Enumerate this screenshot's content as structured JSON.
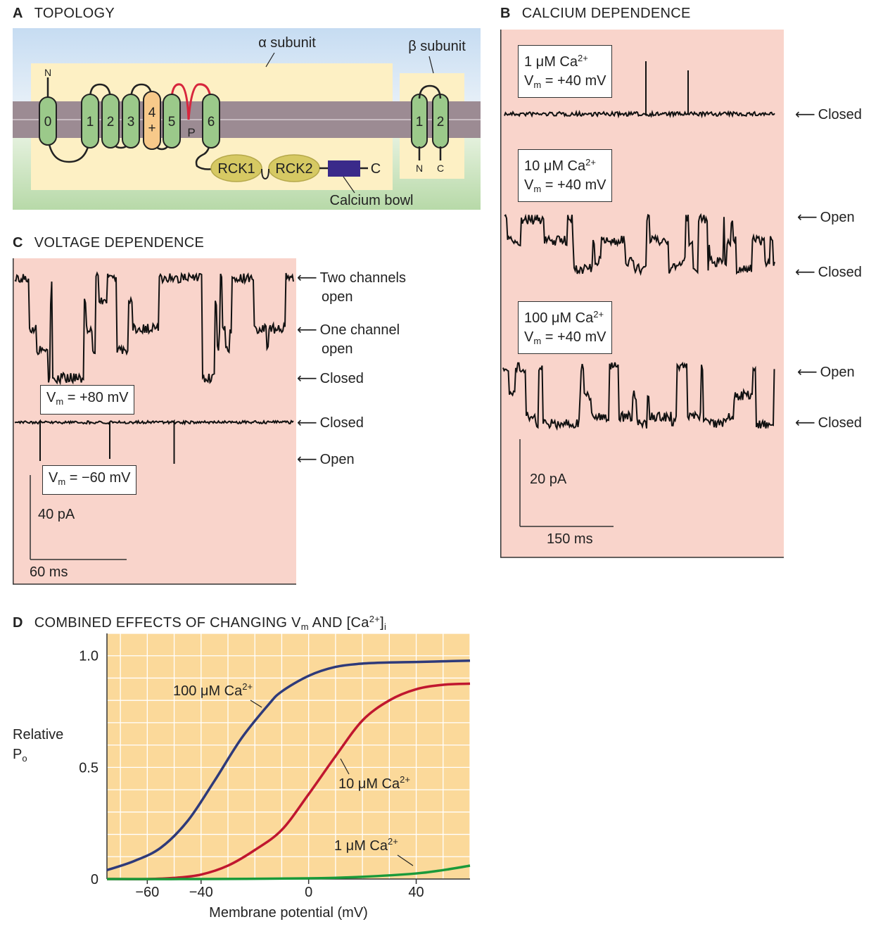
{
  "panel_a": {
    "letter": "A",
    "title": "TOPOLOGY",
    "alpha_label": "α subunit",
    "beta_label": "β subunit",
    "segments": [
      "0",
      "1",
      "2",
      "3",
      "4",
      "5",
      "6"
    ],
    "s4_plus": "+",
    "pore": "P",
    "n_term": "N",
    "c_term": "C",
    "rck1": "RCK1",
    "rck2": "RCK2",
    "calcium_bowl": "Calcium bowl",
    "beta_segments": [
      "1",
      "2"
    ],
    "beta_n": "N",
    "beta_c": "C"
  },
  "panel_b": {
    "letter": "B",
    "title": "CALCIUM DEPENDENCE",
    "conditions": [
      {
        "conc": "1 μM Ca",
        "vm": "V",
        "vm_value": " = +40 mV"
      },
      {
        "conc": "10 μM Ca",
        "vm": "V",
        "vm_value": " = +40 mV"
      },
      {
        "conc": "100 μM Ca",
        "vm": "V",
        "vm_value": " = +40 mV"
      }
    ],
    "sup": "2+",
    "sub_m": "m",
    "labels": {
      "closed": "Closed",
      "open": "Open"
    },
    "scale_y": "20 pA",
    "scale_x": "150 ms"
  },
  "panel_c": {
    "letter": "C",
    "title": "VOLTAGE DEPENDENCE",
    "two_open_1": "Two channels",
    "two_open_2": "open",
    "one_open_1": "One channel",
    "one_open_2": "open",
    "closed": "Closed",
    "open": "Open",
    "vm_pos": " = +80 mV",
    "vm_neg": " = −60 mV",
    "vm": "V",
    "sub_m": "m",
    "scale_y": "40 pA",
    "scale_x": "60 ms"
  },
  "panel_d": {
    "letter": "D",
    "title_pre": "COMBINED EFFECTS OF CHANGING V",
    "title_m": "m",
    "title_mid": " AND [Ca",
    "title_sup": "2+",
    "title_end": "]",
    "title_sub_i": "i",
    "ylabel_1": "Relative",
    "ylabel_2": "P",
    "ylabel_sub": "o",
    "xlabel": "Membrane potential (mV)"
  },
  "chart_data": {
    "type": "line",
    "title": "COMBINED EFFECTS OF CHANGING Vm AND [Ca2+]i",
    "xlabel": "Membrane potential (mV)",
    "ylabel": "Relative Po",
    "xlim": [
      -75,
      60
    ],
    "ylim": [
      0,
      1.1
    ],
    "x_ticks": [
      -60,
      -40,
      0,
      40
    ],
    "x_tick_labels": [
      "−60",
      "−40",
      "0",
      "40"
    ],
    "y_ticks": [
      0,
      0.5,
      1.0
    ],
    "y_tick_labels": [
      "0",
      "0.5",
      "1.0"
    ],
    "grid": true,
    "series": [
      {
        "name": "100 μM Ca2+",
        "label_main": "100 μM Ca",
        "label_sup": "2+",
        "color": "#2e3a7a",
        "x": [
          -75,
          -65,
          -55,
          -45,
          -35,
          -25,
          -15,
          -10,
          0,
          10,
          20,
          30,
          40,
          50,
          60
        ],
        "y": [
          0.04,
          0.08,
          0.14,
          0.26,
          0.44,
          0.63,
          0.78,
          0.84,
          0.91,
          0.95,
          0.965,
          0.97,
          0.972,
          0.975,
          0.978
        ]
      },
      {
        "name": "10 μM Ca2+",
        "label_main": "10 μM Ca",
        "label_sup": "2+",
        "color": "#c0172f",
        "x": [
          -75,
          -60,
          -50,
          -40,
          -30,
          -20,
          -10,
          0,
          10,
          20,
          30,
          40,
          50,
          60
        ],
        "y": [
          0.0,
          0.0,
          0.005,
          0.02,
          0.06,
          0.13,
          0.22,
          0.38,
          0.55,
          0.71,
          0.8,
          0.85,
          0.87,
          0.875
        ]
      },
      {
        "name": "1 μM Ca2+",
        "label_main": "1 μM Ca",
        "label_sup": "2+",
        "color": "#1a9a3a",
        "x": [
          -75,
          -40,
          0,
          20,
          40,
          50,
          60
        ],
        "y": [
          0.0,
          0.0,
          0.003,
          0.01,
          0.025,
          0.04,
          0.06
        ]
      }
    ]
  },
  "colors": {
    "pink_bg": "#f9d4cb",
    "membrane": "#9c8b93",
    "helix": "#9bc98a",
    "s4": "#f7c98a",
    "loop_red": "#d7263d",
    "rck": "#d6c963",
    "bowl": "#3a2a8a",
    "chart_bg": "#fbd99a",
    "topo_cream": "#fdf0c4",
    "topo_sky": "#c6dcf2",
    "topo_green": "#b7d9a8"
  }
}
